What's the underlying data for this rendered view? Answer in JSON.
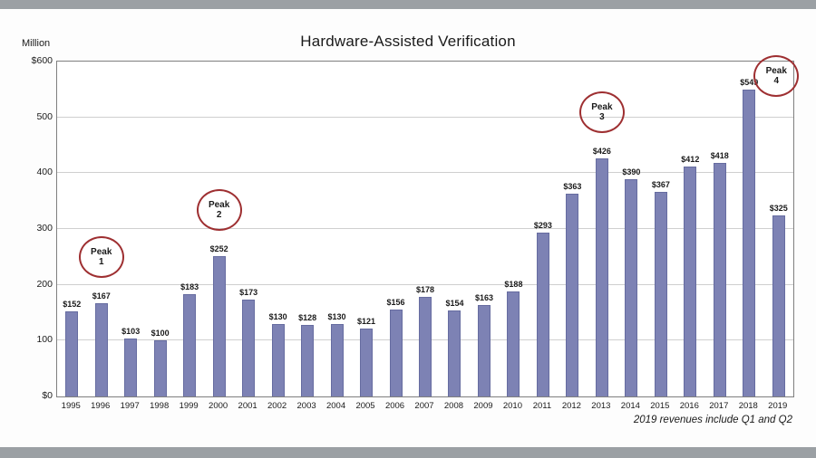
{
  "title": "Hardware-Assisted Verification",
  "y_axis_unit": "Million",
  "footnote": "2019 revenues include Q1 and Q2",
  "colors": {
    "bar": "#7d82b4",
    "bar_border": "#666ca0",
    "peak_circle": "#9e2f31",
    "grid": "#cfcfcf",
    "plot_border": "#7f7f7f",
    "background_strip": "#9ba0a4"
  },
  "chart_data": {
    "type": "bar",
    "title": "Hardware-Assisted Verification",
    "xlabel": "",
    "ylabel": "Million",
    "ylim": [
      0,
      600
    ],
    "grid": true,
    "legend": "none",
    "categories": [
      "1995",
      "1996",
      "1997",
      "1998",
      "1999",
      "2000",
      "2001",
      "2002",
      "2003",
      "2004",
      "2005",
      "2006",
      "2007",
      "2008",
      "2009",
      "2010",
      "2011",
      "2012",
      "2013",
      "2014",
      "2015",
      "2016",
      "2017",
      "2018",
      "2019"
    ],
    "values": [
      152,
      167,
      103,
      100,
      183,
      252,
      173,
      130,
      128,
      130,
      121,
      156,
      178,
      154,
      163,
      188,
      293,
      363,
      426,
      390,
      367,
      412,
      418,
      549,
      325
    ],
    "value_labels": [
      "$152",
      "$167",
      "$103",
      "$100",
      "$183",
      "$252",
      "$173",
      "$130",
      "$128",
      "$130",
      "$121",
      "$156",
      "$178",
      "$154",
      "$163",
      "$188",
      "$293",
      "$363",
      "$426",
      "$390",
      "$367",
      "$412",
      "$418",
      "$549",
      "$325"
    ],
    "ytick_values": [
      0,
      100,
      200,
      300,
      400,
      500,
      600
    ],
    "ytick_labels": [
      "$0",
      "100",
      "200",
      "300",
      "400",
      "500",
      "$600"
    ],
    "annotations": [
      {
        "line1": "Peak",
        "line2": "1",
        "year": "1996",
        "dx": 0,
        "dy": 0
      },
      {
        "line1": "Peak",
        "line2": "2",
        "year": "2000",
        "dx": 0,
        "dy": 0
      },
      {
        "line1": "Peak",
        "line2": "3",
        "year": "2013",
        "dx": 0,
        "dy": 0
      },
      {
        "line1": "Peak",
        "line2": "4",
        "year": "2018",
        "dx": 30,
        "dy": 36
      }
    ]
  }
}
